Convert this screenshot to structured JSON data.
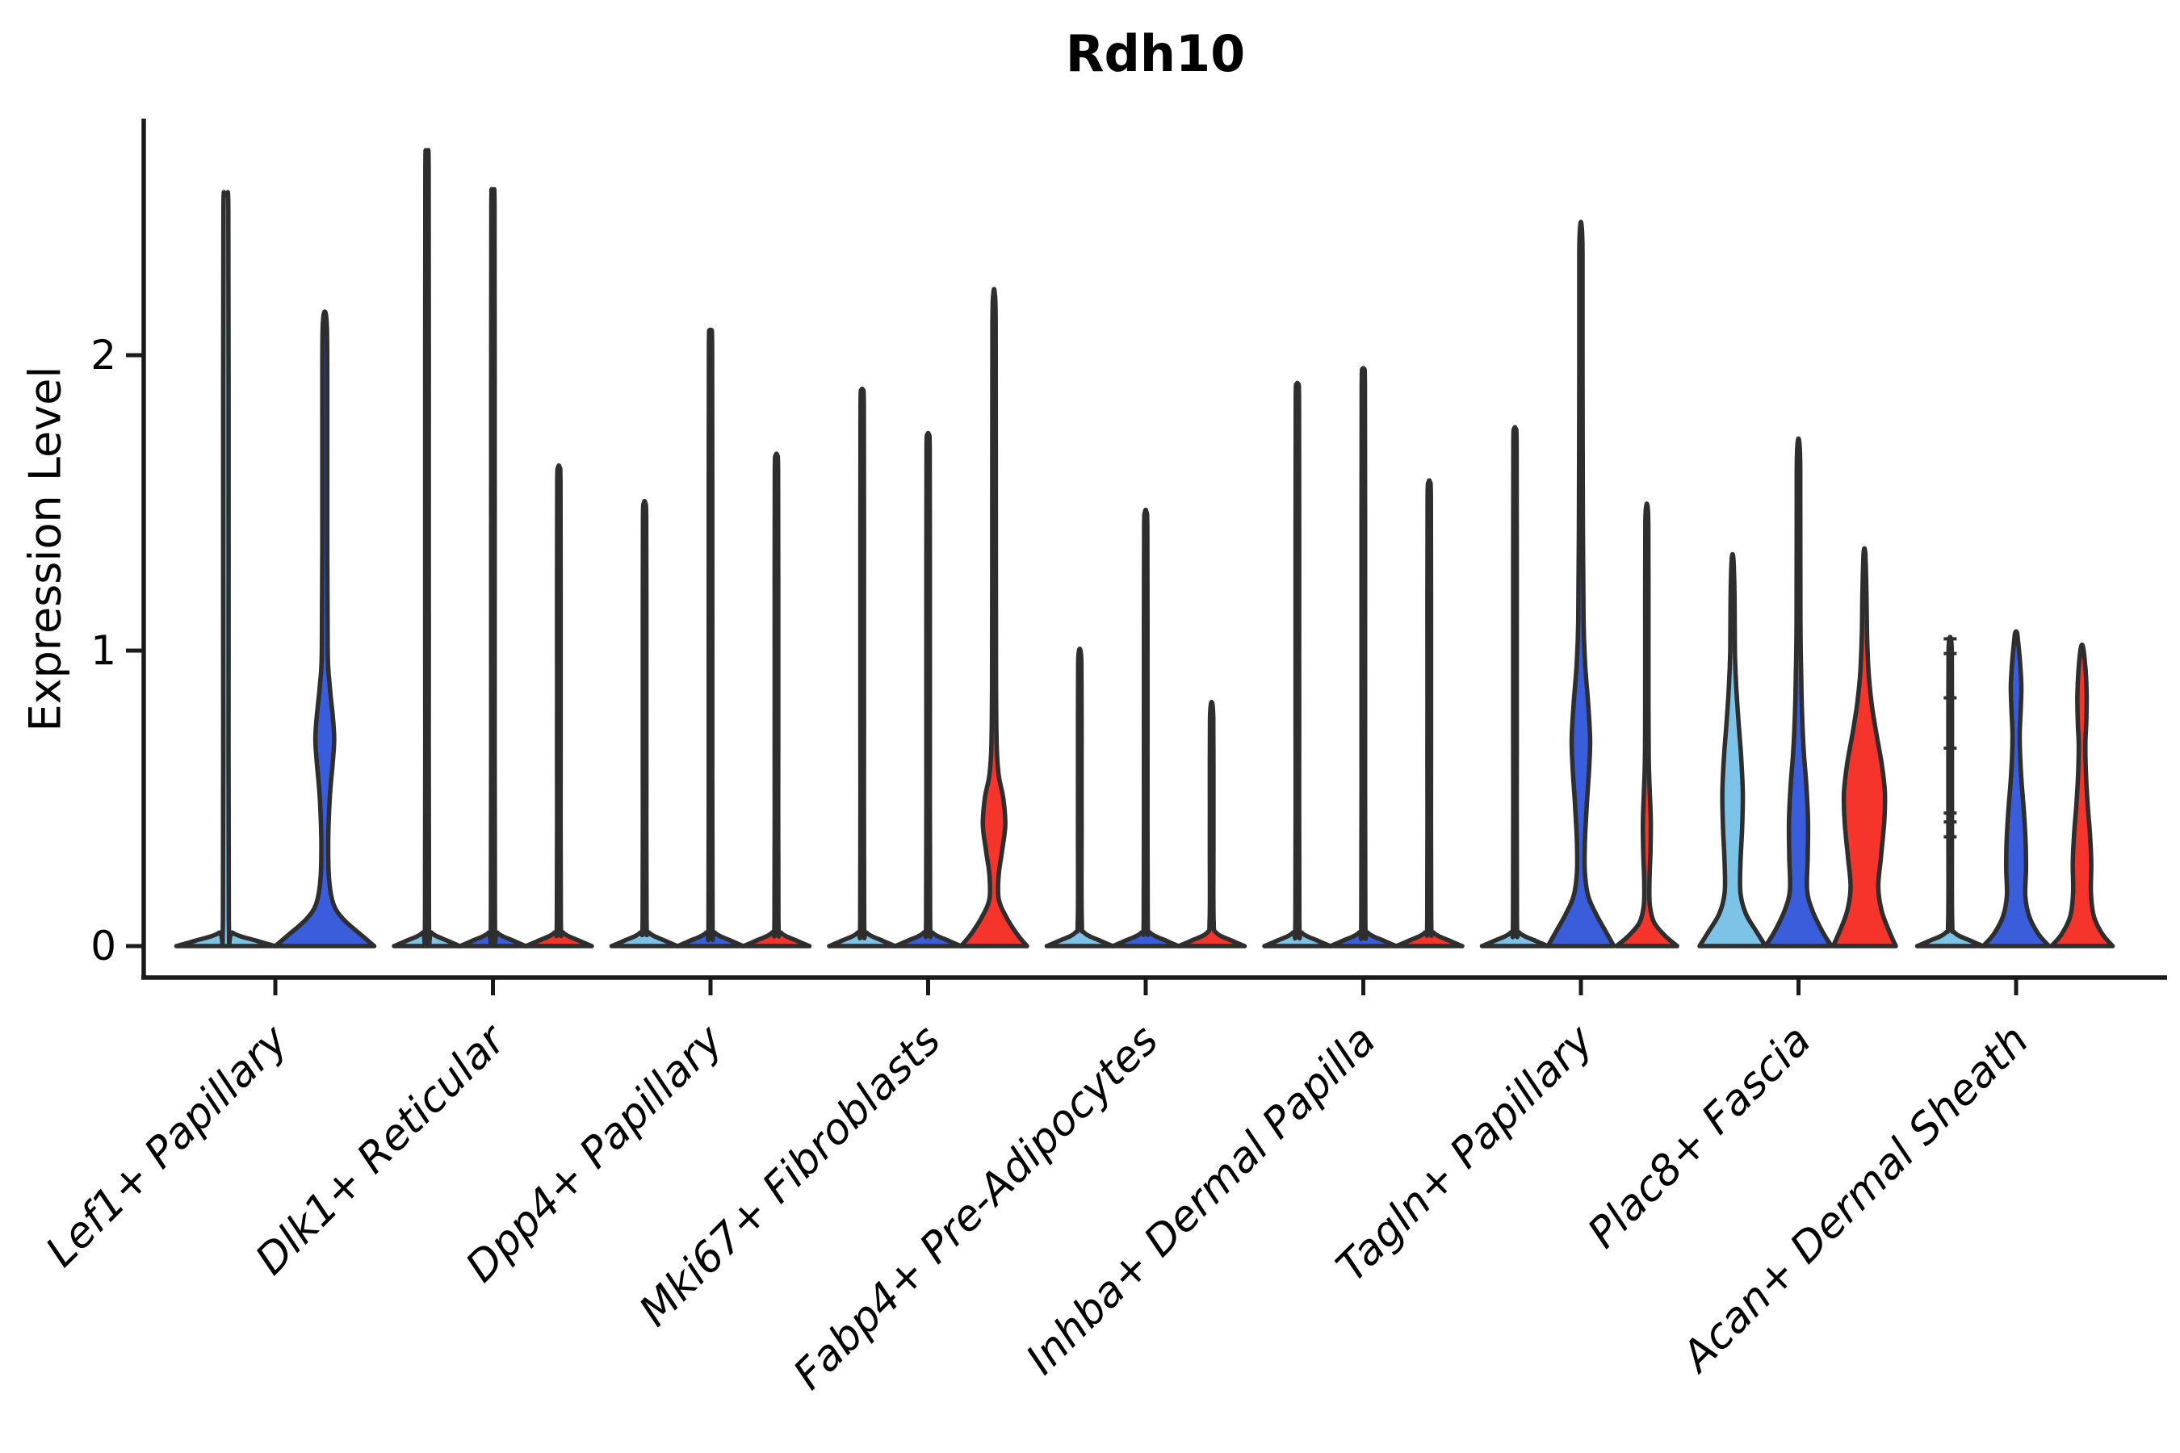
{
  "chart_data": {
    "type": "violin",
    "title": "Rdh10",
    "ylabel": "Expression Level",
    "xlabel": "",
    "yticks": [
      0,
      1,
      2
    ],
    "ylim": [
      -0.08,
      2.85
    ],
    "grid": false,
    "legend": "none",
    "split_levels": [
      {
        "id": "split-1",
        "color": "#7DC3E8"
      },
      {
        "id": "split-2",
        "color": "#3A5EDB"
      },
      {
        "id": "split-3",
        "color": "#F5342B"
      }
    ],
    "outline_color": "#2e2e2e",
    "axis_color": "#1a1a1a",
    "categories": [
      "Lef1+ Papillary",
      "Dlk1+ Reticular",
      "Dpp4+ Papillary",
      "Mki67+ Fibroblasts",
      "Fabp4+ Pre-Adipocytes",
      "Inhba+ Dermal Papilla",
      "Tagln+ Papillary",
      "Plac8+ Fascia",
      "Acan+ Dermal Sheath"
    ],
    "groups": [
      {
        "label": "Lef1+ Papillary",
        "violins": [
          {
            "split": 0,
            "type": "thin",
            "top": 2.54
          },
          {
            "split": 1,
            "type": "shaped",
            "top": 2.14,
            "profile": [
              [
                0,
                1.0
              ],
              [
                0.04,
                0.72
              ],
              [
                0.09,
                0.38
              ],
              [
                0.14,
                0.18
              ],
              [
                0.22,
                0.09
              ],
              [
                0.35,
                0.07
              ],
              [
                0.5,
                0.1
              ],
              [
                0.62,
                0.16
              ],
              [
                0.7,
                0.19
              ],
              [
                0.78,
                0.16
              ],
              [
                0.88,
                0.1
              ],
              [
                1.0,
                0.06
              ],
              [
                1.4,
                0.05
              ],
              [
                1.9,
                0.05
              ],
              [
                2.08,
                0.045
              ],
              [
                2.14,
                0.02
              ]
            ]
          }
        ]
      },
      {
        "label": "Dlk1+ Reticular",
        "violins": [
          {
            "split": 0,
            "type": "thin",
            "top": 2.68
          },
          {
            "split": 1,
            "type": "thin",
            "top": 2.55
          },
          {
            "split": 2,
            "type": "thin",
            "top": 1.62
          }
        ]
      },
      {
        "label": "Dpp4+ Papillary",
        "violins": [
          {
            "split": 0,
            "type": "thin",
            "top": 1.5
          },
          {
            "split": 1,
            "type": "thin",
            "top": 2.08
          },
          {
            "split": 2,
            "type": "thin",
            "top": 1.66
          }
        ]
      },
      {
        "label": "Mki67+ Fibroblasts",
        "violins": [
          {
            "split": 0,
            "type": "thin",
            "top": 1.88
          },
          {
            "split": 1,
            "type": "thin",
            "top": 1.73
          },
          {
            "split": 2,
            "type": "shaped",
            "top": 2.21,
            "profile": [
              [
                0,
                1.0
              ],
              [
                0.04,
                0.7
              ],
              [
                0.1,
                0.36
              ],
              [
                0.16,
                0.14
              ],
              [
                0.24,
                0.14
              ],
              [
                0.32,
                0.24
              ],
              [
                0.41,
                0.34
              ],
              [
                0.5,
                0.28
              ],
              [
                0.58,
                0.14
              ],
              [
                0.68,
                0.08
              ],
              [
                0.9,
                0.06
              ],
              [
                1.5,
                0.055
              ],
              [
                2.1,
                0.05
              ],
              [
                2.21,
                0.02
              ]
            ]
          }
        ]
      },
      {
        "label": "Fabp4+ Pre-Adipocytes",
        "violins": [
          {
            "split": 0,
            "type": "thin",
            "top": 1.0
          },
          {
            "split": 1,
            "type": "thin",
            "top": 1.47
          },
          {
            "split": 2,
            "type": "thin",
            "top": 0.82
          }
        ]
      },
      {
        "label": "Inhba+ Dermal Papilla",
        "violins": [
          {
            "split": 0,
            "type": "thin",
            "top": 1.9
          },
          {
            "split": 1,
            "type": "thin",
            "top": 1.95
          },
          {
            "split": 2,
            "type": "thin",
            "top": 1.57
          }
        ]
      },
      {
        "label": "Tagln+ Papillary",
        "violins": [
          {
            "split": 0,
            "type": "thin",
            "top": 1.75
          },
          {
            "split": 1,
            "type": "shaped",
            "top": 2.44,
            "profile": [
              [
                0,
                1.0
              ],
              [
                0.05,
                0.75
              ],
              [
                0.11,
                0.45
              ],
              [
                0.17,
                0.22
              ],
              [
                0.25,
                0.12
              ],
              [
                0.35,
                0.12
              ],
              [
                0.48,
                0.18
              ],
              [
                0.6,
                0.25
              ],
              [
                0.7,
                0.28
              ],
              [
                0.82,
                0.22
              ],
              [
                0.95,
                0.13
              ],
              [
                1.1,
                0.08
              ],
              [
                1.4,
                0.06
              ],
              [
                2.0,
                0.05
              ],
              [
                2.35,
                0.05
              ],
              [
                2.44,
                0.02
              ]
            ]
          },
          {
            "split": 2,
            "type": "shaped",
            "top": 1.49,
            "profile": [
              [
                0,
                0.92
              ],
              [
                0.035,
                0.55
              ],
              [
                0.08,
                0.22
              ],
              [
                0.14,
                0.09
              ],
              [
                0.22,
                0.08
              ],
              [
                0.32,
                0.11
              ],
              [
                0.42,
                0.12
              ],
              [
                0.52,
                0.09
              ],
              [
                0.62,
                0.06
              ],
              [
                0.8,
                0.05
              ],
              [
                1.2,
                0.05
              ],
              [
                1.43,
                0.045
              ],
              [
                1.49,
                0.02
              ]
            ]
          }
        ]
      },
      {
        "label": "Plac8+ Fascia",
        "violins": [
          {
            "split": 0,
            "type": "shaped",
            "top": 1.31,
            "profile": [
              [
                0,
                1.0
              ],
              [
                0.05,
                0.72
              ],
              [
                0.11,
                0.4
              ],
              [
                0.18,
                0.24
              ],
              [
                0.28,
                0.24
              ],
              [
                0.4,
                0.29
              ],
              [
                0.52,
                0.31
              ],
              [
                0.64,
                0.26
              ],
              [
                0.76,
                0.18
              ],
              [
                0.88,
                0.11
              ],
              [
                1.0,
                0.07
              ],
              [
                1.18,
                0.06
              ],
              [
                1.31,
                0.025
              ]
            ]
          },
          {
            "split": 1,
            "type": "shaped",
            "top": 1.71,
            "profile": [
              [
                0,
                1.0
              ],
              [
                0.05,
                0.72
              ],
              [
                0.12,
                0.42
              ],
              [
                0.19,
                0.26
              ],
              [
                0.3,
                0.28
              ],
              [
                0.42,
                0.29
              ],
              [
                0.54,
                0.24
              ],
              [
                0.66,
                0.16
              ],
              [
                0.78,
                0.11
              ],
              [
                0.92,
                0.08
              ],
              [
                1.1,
                0.06
              ],
              [
                1.5,
                0.055
              ],
              [
                1.65,
                0.05
              ],
              [
                1.71,
                0.02
              ]
            ]
          },
          {
            "split": 2,
            "type": "shaped",
            "top": 1.33,
            "profile": [
              [
                0,
                0.95
              ],
              [
                0.05,
                0.75
              ],
              [
                0.12,
                0.52
              ],
              [
                0.2,
                0.42
              ],
              [
                0.3,
                0.5
              ],
              [
                0.42,
                0.6
              ],
              [
                0.52,
                0.62
              ],
              [
                0.62,
                0.52
              ],
              [
                0.72,
                0.36
              ],
              [
                0.82,
                0.22
              ],
              [
                0.92,
                0.13
              ],
              [
                1.05,
                0.08
              ],
              [
                1.2,
                0.06
              ],
              [
                1.33,
                0.025
              ]
            ]
          }
        ]
      },
      {
        "label": "Acan+ Dermal Sheath",
        "violins": [
          {
            "split": 0,
            "type": "thin",
            "top": 1.04,
            "dashes": [
              1.04,
              0.99,
              0.84,
              0.67,
              0.45,
              0.42,
              0.37
            ]
          },
          {
            "split": 1,
            "type": "shaped",
            "top": 1.06,
            "profile": [
              [
                0,
                1.0
              ],
              [
                0.04,
                0.68
              ],
              [
                0.1,
                0.4
              ],
              [
                0.17,
                0.28
              ],
              [
                0.26,
                0.3
              ],
              [
                0.35,
                0.29
              ],
              [
                0.45,
                0.24
              ],
              [
                0.55,
                0.17
              ],
              [
                0.65,
                0.12
              ],
              [
                0.72,
                0.11
              ],
              [
                0.8,
                0.14
              ],
              [
                0.88,
                0.16
              ],
              [
                0.96,
                0.12
              ],
              [
                1.02,
                0.07
              ],
              [
                1.06,
                0.03
              ]
            ]
          },
          {
            "split": 2,
            "type": "shaped",
            "top": 1.01,
            "profile": [
              [
                0,
                0.93
              ],
              [
                0.04,
                0.62
              ],
              [
                0.1,
                0.36
              ],
              [
                0.18,
                0.27
              ],
              [
                0.28,
                0.28
              ],
              [
                0.38,
                0.24
              ],
              [
                0.48,
                0.17
              ],
              [
                0.58,
                0.12
              ],
              [
                0.68,
                0.1
              ],
              [
                0.76,
                0.13
              ],
              [
                0.85,
                0.14
              ],
              [
                0.93,
                0.11
              ],
              [
                1.01,
                0.035
              ]
            ]
          }
        ]
      }
    ]
  }
}
